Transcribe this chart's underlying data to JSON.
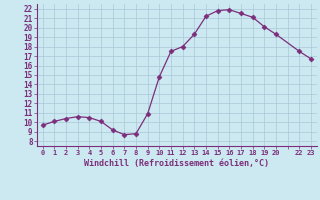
{
  "x": [
    0,
    1,
    2,
    3,
    4,
    5,
    6,
    7,
    8,
    9,
    10,
    11,
    12,
    13,
    14,
    15,
    16,
    17,
    18,
    19,
    20,
    22,
    23
  ],
  "y": [
    9.7,
    10.1,
    10.4,
    10.6,
    10.5,
    10.1,
    9.2,
    8.7,
    8.8,
    10.9,
    14.8,
    17.5,
    18.0,
    19.3,
    21.2,
    21.8,
    21.9,
    21.5,
    21.1,
    20.1,
    19.3,
    17.5,
    16.7
  ],
  "line_color": "#7b2f7b",
  "marker": "D",
  "marker_size": 2.5,
  "bg_color": "#cce8f0",
  "grid_color": "#aac8d8",
  "xlabel": "Windchill (Refroidissement éolien,°C)",
  "xlabel_color": "#7b2f7b",
  "tick_color": "#7b2f7b",
  "ylim": [
    7.5,
    22.5
  ],
  "xlim": [
    -0.5,
    23.5
  ]
}
